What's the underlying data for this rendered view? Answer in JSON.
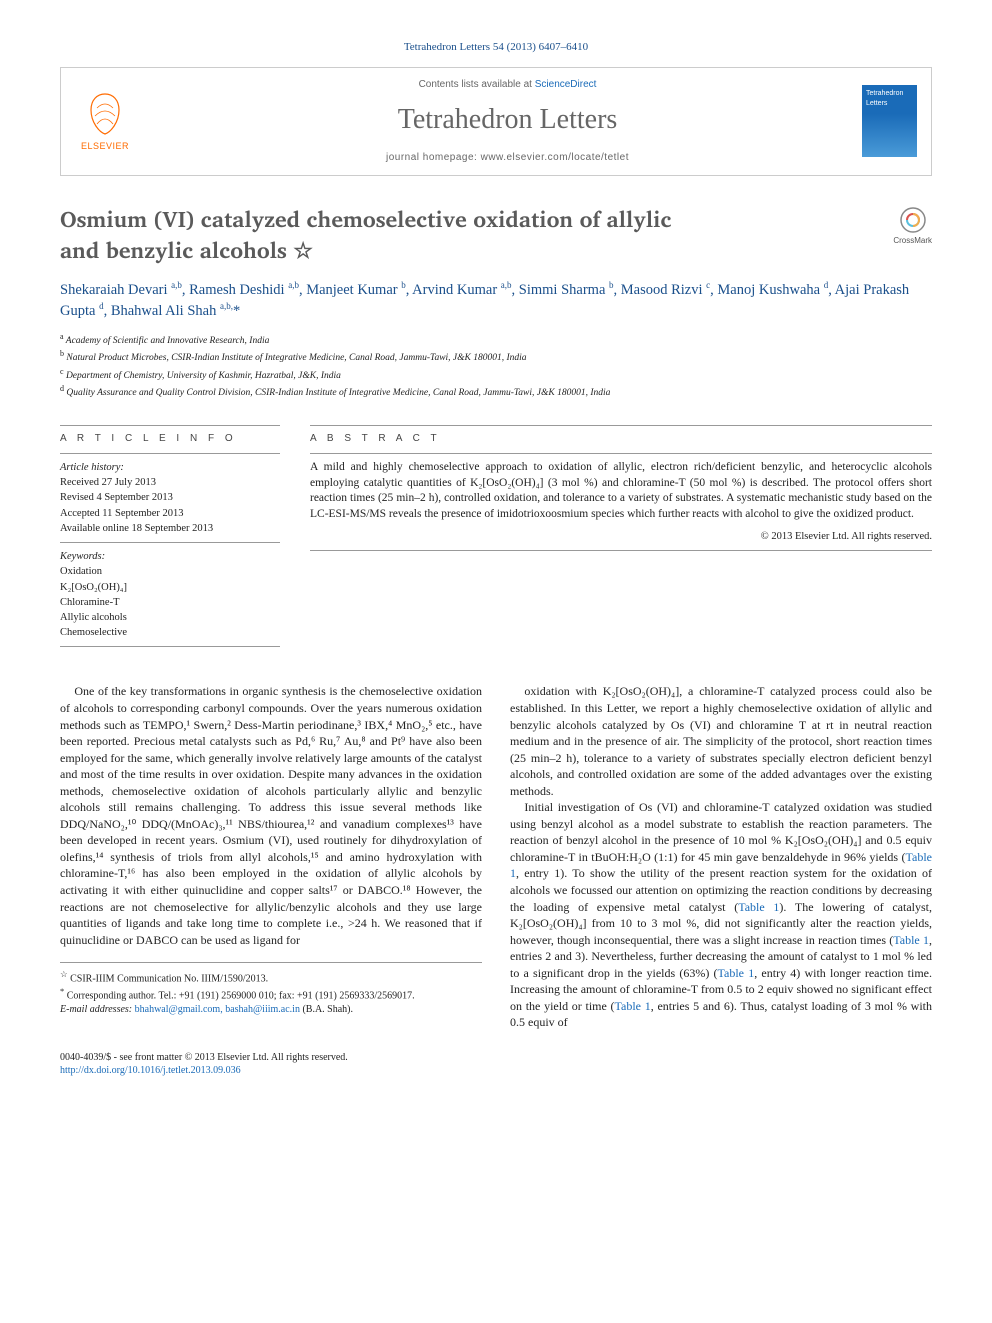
{
  "citation": "Tetrahedron Letters 54 (2013) 6407–6410",
  "header": {
    "contents_prefix": "Contents lists available at ",
    "contents_link": "ScienceDirect",
    "journal": "Tetrahedron Letters",
    "homepage": "journal homepage: www.elsevier.com/locate/tetlet",
    "elsevier_label": "ELSEVIER",
    "cover_text": "Tetrahedron Letters"
  },
  "article": {
    "title_line1": "Osmium (VI) catalyzed chemoselective oxidation of allylic",
    "title_line2": "and benzylic alcohols ☆",
    "crossmark": "CrossMark",
    "authors_html": "Shekaraiah Devari <sup>a,b</sup>, Ramesh Deshidi <sup>a,b</sup>, Manjeet Kumar <sup>b</sup>, Arvind Kumar <sup>a,b</sup>, Simmi Sharma <sup>b</sup>, Masood Rizvi <sup>c</sup>, Manoj Kushwaha <sup>d</sup>, Ajai Prakash Gupta <sup>d</sup>, Bhahwal Ali Shah <sup>a,b,</sup><span class='star'>*</span>",
    "affiliations": [
      "a Academy of Scientific and Innovative Research, India",
      "b Natural Product Microbes, CSIR-Indian Institute of Integrative Medicine, Canal Road, Jammu-Tawi, J&K 180001, India",
      "c Department of Chemistry, University of Kashmir, Hazratbal, J&K, India",
      "d Quality Assurance and Quality Control Division, CSIR-Indian Institute of Integrative Medicine, Canal Road, Jammu-Tawi, J&K 180001, India"
    ]
  },
  "info": {
    "head": "A R T I C L E   I N F O",
    "history_label": "Article history:",
    "history": [
      "Received 27 July 2013",
      "Revised 4 September 2013",
      "Accepted 11 September 2013",
      "Available online 18 September 2013"
    ],
    "keywords_label": "Keywords:",
    "keywords": [
      "Oxidation",
      "K₂[OsO₂(OH)₄]",
      "Chloramine-T",
      "Allylic alcohols",
      "Chemoselective"
    ]
  },
  "abstract": {
    "head": "A B S T R A C T",
    "text": "A mild and highly chemoselective approach to oxidation of allylic, electron rich/deficient benzylic, and heterocyclic alcohols employing catalytic quantities of K₂[OsO₂(OH)₄] (3 mol %) and chloramine-T (50 mol %) is described. The protocol offers short reaction times (25 min–2 h), controlled oxidation, and tolerance to a variety of substrates. A systematic mechanistic study based on the LC-ESI-MS/MS reveals the presence of imidotrioxoosmium species which further reacts with alcohol to give the oxidized product.",
    "copyright": "© 2013 Elsevier Ltd. All rights reserved."
  },
  "body": {
    "para1": "One of the key transformations in organic synthesis is the chemoselective oxidation of alcohols to corresponding carbonyl compounds. Over the years numerous oxidation methods such as TEMPO,¹ Swern,² Dess-Martin periodinane,³ IBX,⁴ MnO₂,⁵ etc., have been reported. Precious metal catalysts such as Pd,⁶ Ru,⁷ Au,⁸ and Pt⁹ have also been employed for the same, which generally involve relatively large amounts of the catalyst and most of the time results in over oxidation. Despite many advances in the oxidation methods, chemoselective oxidation of alcohols particularly allylic and benzylic alcohols still remains challenging. To address this issue several methods like DDQ/NaNO₂,¹⁰ DDQ/(MnOAc)₃,¹¹ NBS/thiourea,¹² and vanadium complexes¹³ have been developed in recent years. Osmium (VI), used routinely for dihydroxylation of olefins,¹⁴ synthesis of triols from allyl alcohols,¹⁵ and amino hydroxylation with chloramine-T,¹⁶ has also been employed in the oxidation of allylic alcohols by activating it with either quinuclidine and copper salts¹⁷ or DABCO.¹⁸ However, the reactions are not chemoselective for allylic/benzylic alcohols and they use large quantities of ligands and take long time to complete i.e., >24 h. We reasoned that if quinuclidine or DABCO can be used as ligand for",
    "para2": "oxidation with K₂[OsO₂(OH)₄], a chloramine-T catalyzed process could also be established. In this Letter, we report a highly chemoselective oxidation of allylic and benzylic alcohols catalyzed by Os (VI) and chloramine T at rt in neutral reaction medium and in the presence of air. The simplicity of the protocol, short reaction times (25 min–2 h), tolerance to a variety of substrates specially electron deficient benzyl alcohols, and controlled oxidation are some of the added advantages over the existing methods.",
    "para3": "Initial investigation of Os (VI) and chloramine-T catalyzed oxidation was studied using benzyl alcohol as a model substrate to establish the reaction parameters. The reaction of benzyl alcohol in the presence of 10 mol % K₂[OsO₂(OH)₄] and 0.5 equiv chloramine-T in tBuOH:H₂O (1:1) for 45 min gave benzaldehyde in 96% yields (Table 1, entry 1). To show the utility of the present reaction system for the oxidation of alcohols we focussed our attention on optimizing the reaction conditions by decreasing the loading of expensive metal catalyst (Table 1). The lowering of catalyst, K₂[OsO₂(OH)₄] from 10 to 3 mol %, did not significantly alter the reaction yields, however, though inconsequential, there was a slight increase in reaction times (Table 1, entries 2 and 3). Nevertheless, further decreasing the amount of catalyst to 1 mol % led to a significant drop in the yields (63%) (Table 1, entry 4) with longer reaction time. Increasing the amount of chloramine-T from 0.5 to 2 equiv showed no significant effect on the yield or time (Table 1, entries 5 and 6). Thus, catalyst loading of 3 mol % with 0.5 equiv of"
  },
  "footnotes": {
    "note1_sym": "☆",
    "note1": "CSIR-IIIM Communication No. IIIM/1590/2013.",
    "note2_sym": "*",
    "note2": "Corresponding author. Tel.: +91 (191) 2569000 010; fax: +91 (191) 2569333/2569017.",
    "email_label": "E-mail addresses:",
    "emails": "bhahwal@gmail.com, bashah@iiim.ac.in",
    "email_tail": "(B.A. Shah)."
  },
  "footer": {
    "line1": "0040-4039/$ - see front matter © 2013 Elsevier Ltd. All rights reserved.",
    "line2_label": "http://dx.doi.org/10.1016/j.tetlet.2013.09.036"
  },
  "colors": {
    "link": "#1a6bb8",
    "author": "#1a4f8b",
    "gray_heading": "#5a5a5a",
    "elsevier_orange": "#ff6b00"
  }
}
